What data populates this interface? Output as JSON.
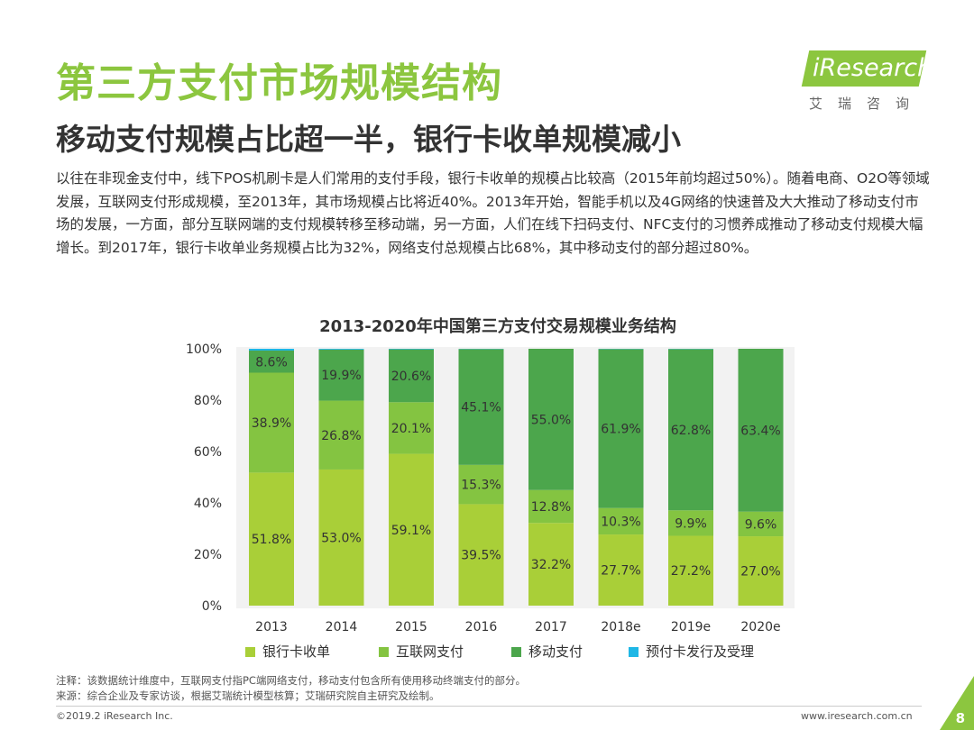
{
  "page": {
    "title": "第三方支付市场规模结构",
    "subtitle": "移动支付规模占比超一半，银行卡收单规模减小",
    "paragraph": "以往在非现金支付中，线下POS机刷卡是人们常用的支付手段，银行卡收单的规模占比较高（2015年前均超过50%）。随着电商、O2O等领域发展，互联网支付形成规模，至2013年，其市场规模占比将近40%。2013年开始，智能手机以及4G网络的快速普及大大推动了移动支付市场的发展，一方面，部分互联网端的支付规模转移至移动端，另一方面，人们在线下扫码支付、NFC支付的习惯养成推动了移动支付规模大幅增长。到2017年，银行卡收单业务规模占比为32%，网络支付总规模占比68%，其中移动支付的部分超过80%。",
    "note": "注释：该数据统计维度中，互联网支付指PC端网络支付，移动支付包含所有使用移动终端支付的部分。",
    "source": "来源：综合企业及专家访谈，根据艾瑞统计模型核算；艾瑞研究院自主研究及绘制。",
    "copyright": "©2019.2 iResearch Inc.",
    "website": "www.iresearch.com.cn",
    "page_number": "8"
  },
  "logo": {
    "text": "iResearch",
    "chinese": "艾瑞咨询"
  },
  "colors": {
    "accent": "#8cc63f",
    "bank_card": "#a9cf38",
    "internet": "#84c441",
    "mobile": "#4ca64c",
    "prepaid": "#1fb7e6"
  },
  "chart_data": {
    "type": "bar",
    "stacked": true,
    "title": "2013-2020年中国第三方支付交易规模业务结构",
    "categories": [
      "2013",
      "2014",
      "2015",
      "2016",
      "2017",
      "2018e",
      "2019e",
      "2020e"
    ],
    "series": [
      {
        "name": "银行卡收单",
        "color": "#a9cf38",
        "values": [
          51.8,
          53.0,
          59.1,
          39.5,
          32.2,
          27.7,
          27.2,
          27.0
        ]
      },
      {
        "name": "互联网支付",
        "color": "#84c441",
        "values": [
          38.9,
          26.8,
          20.1,
          15.3,
          12.8,
          10.3,
          9.9,
          9.6
        ]
      },
      {
        "name": "移动支付",
        "color": "#4ca64c",
        "values": [
          8.6,
          19.9,
          20.6,
          45.1,
          55.0,
          61.9,
          62.8,
          63.4
        ]
      },
      {
        "name": "预付卡发行及受理",
        "color": "#1fb7e6",
        "values": [
          0.7,
          0.3,
          0.2,
          0.1,
          0.0,
          0.1,
          0.1,
          0.0
        ]
      }
    ],
    "y_ticks": [
      "0%",
      "20%",
      "40%",
      "60%",
      "80%",
      "100%"
    ],
    "ylim": [
      0,
      100
    ],
    "legend_position": "bottom",
    "grid": false
  }
}
